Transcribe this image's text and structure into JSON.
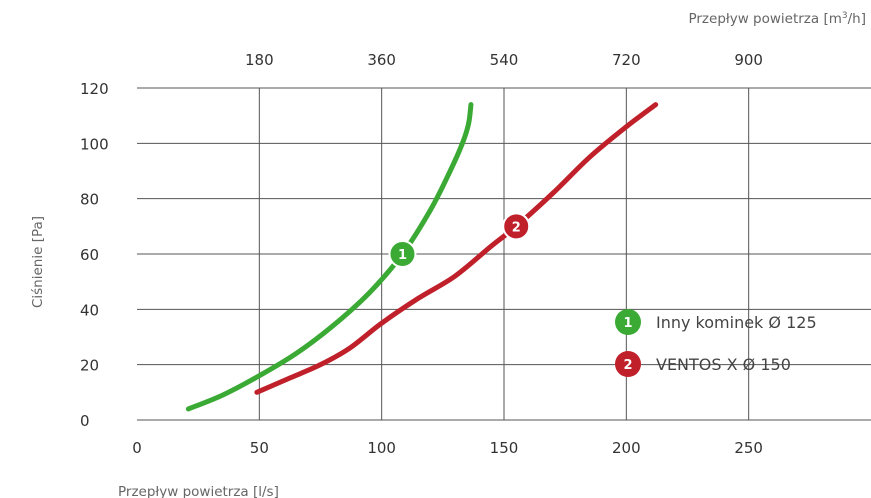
{
  "chart_data": {
    "type": "line",
    "xlabel": "Przepływ powietrza [l/s]",
    "ylabel": "Ciśnienie [Pa]",
    "x2label_prefix": "Przepływ powietrza [m",
    "x2label_sup": "3",
    "x2label_suffix": "/h]",
    "xlim": [
      0,
      300
    ],
    "ylim": [
      0,
      120
    ],
    "x_ticks": [
      0,
      50,
      100,
      150,
      200,
      250
    ],
    "y_ticks": [
      0,
      20,
      40,
      60,
      80,
      100,
      120
    ],
    "x2_ticks": [
      180,
      360,
      540,
      720,
      900
    ],
    "grid": true,
    "legend_position": "bottom-right",
    "series": [
      {
        "name": "Inny kominek Ø 125",
        "marker_label": "1",
        "color": "#3aaa35",
        "marker_at": [
          108.5,
          60
        ],
        "points": [
          [
            21,
            4
          ],
          [
            35,
            9
          ],
          [
            50,
            16
          ],
          [
            65,
            24
          ],
          [
            80,
            34
          ],
          [
            95,
            46
          ],
          [
            108.5,
            60
          ],
          [
            120,
            76
          ],
          [
            128,
            90
          ],
          [
            133,
            100
          ],
          [
            135.5,
            107
          ],
          [
            136.5,
            114
          ]
        ]
      },
      {
        "name": "VENTOS X Ø 150",
        "marker_label": "2",
        "color": "#c0202a",
        "marker_at": [
          155,
          70
        ],
        "points": [
          [
            49,
            10
          ],
          [
            62,
            15
          ],
          [
            75,
            20
          ],
          [
            87,
            26
          ],
          [
            100,
            35
          ],
          [
            115,
            44
          ],
          [
            130,
            52
          ],
          [
            145,
            63
          ],
          [
            155,
            70
          ],
          [
            170,
            82
          ],
          [
            185,
            95
          ],
          [
            200,
            106
          ],
          [
            212,
            114
          ]
        ]
      }
    ]
  }
}
